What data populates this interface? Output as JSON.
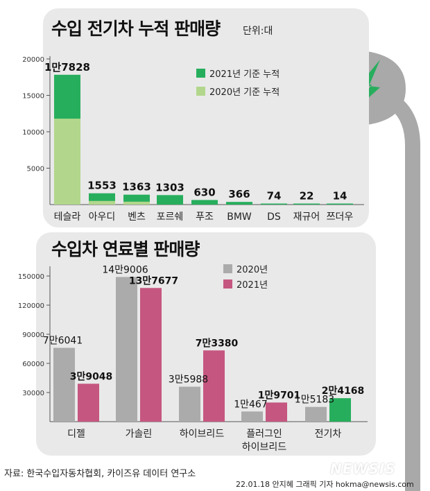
{
  "colors": {
    "dark_green": "#27ae5d",
    "light_green": "#b2d78c",
    "gray": "#ababab",
    "pink": "#c5567f",
    "panel": "#e9e9e9",
    "plug": "#a9a9a9"
  },
  "chart_data": [
    {
      "type": "bar",
      "title": "수입 전기차 누적 판매량",
      "unit_label": "단위:대",
      "categories": [
        "테슬라",
        "아우디",
        "벤츠",
        "포르쉐",
        "푸조",
        "BMW",
        "DS",
        "재규어",
        "쯔더우"
      ],
      "series": [
        {
          "name": "2021년 기준 누적",
          "values": [
            17828,
            1553,
            1363,
            1303,
            630,
            366,
            74,
            22,
            14
          ]
        },
        {
          "name": "2020년 기준 누적",
          "values": [
            11800,
            500,
            400,
            0,
            0,
            0,
            0,
            0,
            0
          ]
        }
      ],
      "data_labels": [
        "1만7828",
        "1553",
        "1363",
        "1303",
        "630",
        "366",
        "74",
        "22",
        "14"
      ],
      "yticks": [
        5000,
        10000,
        15000,
        20000
      ],
      "ytick_labels": [
        "5000",
        "10000",
        "15000",
        "20000"
      ],
      "ylim": [
        0,
        20000
      ],
      "legend_position": "top-right"
    },
    {
      "type": "bar",
      "title": "수입차 연료별 판매량",
      "categories": [
        "디젤",
        "가솔린",
        "하이브리드",
        "플러그인\n하이브리드",
        "전기차"
      ],
      "category_lines": [
        [
          "디젤"
        ],
        [
          "가솔린"
        ],
        [
          "하이브리드"
        ],
        [
          "플러그인",
          "하이브리드"
        ],
        [
          "전기차"
        ]
      ],
      "series": [
        {
          "name": "2020년",
          "values": [
            76041,
            149006,
            35988,
            10467,
            15183
          ]
        },
        {
          "name": "2021년",
          "values": [
            39048,
            137677,
            73380,
            19701,
            24168
          ]
        }
      ],
      "data_labels_2020": [
        "7만6041",
        "14만9006",
        "3만5988",
        "1만467",
        "1만5183"
      ],
      "data_labels_2021": [
        "3만9048",
        "13만7677",
        "7만3380",
        "1만9701",
        "2만4168"
      ],
      "highlight_category": "전기차",
      "yticks": [
        30000,
        60000,
        90000,
        120000,
        150000
      ],
      "ytick_labels": [
        "30000",
        "60000",
        "90000",
        "120000",
        "150000"
      ],
      "ylim": [
        0,
        150000
      ],
      "legend_position": "top-center"
    }
  ],
  "footer": {
    "source": "자료: 한국수입자동차협회, 카이즈유 데이터 연구소",
    "credit": "22.01.18 안지혜 그래픽 기자 hokma@newsis.com",
    "logo": "NEWSIS"
  }
}
